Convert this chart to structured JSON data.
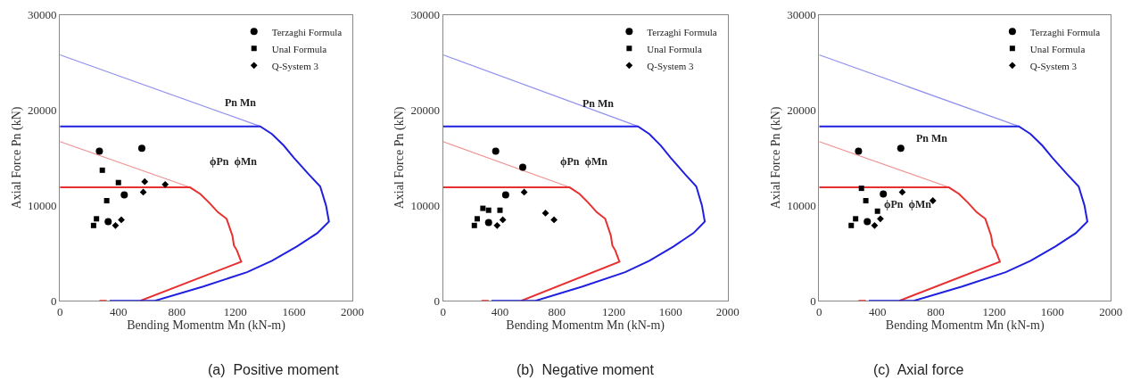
{
  "chart_data": [
    {
      "type": "scatter",
      "title": "(a)  Positive moment",
      "xlabel": "Bending Momentm Mn (kN-m)",
      "ylabel": "Axial Force Pn (kN)",
      "xlim": [
        0,
        2000
      ],
      "ylim": [
        0,
        30000
      ],
      "xticks": [
        0,
        400,
        800,
        1200,
        1600,
        2000
      ],
      "yticks": [
        0,
        10000,
        20000,
        30000
      ],
      "grid": false,
      "legend": "top right",
      "annotations": [
        "Pn Mn",
        "ϕPn  ϕMn"
      ],
      "series": [
        {
          "type": "line",
          "color": "#9090f0",
          "x": [
            0,
            1370
          ],
          "values": [
            25800,
            18300
          ]
        },
        {
          "type": "line",
          "color": "#f09090",
          "x": [
            0,
            890
          ],
          "values": [
            16700,
            11900
          ]
        },
        {
          "type": "line",
          "color": "#e83030",
          "x": [
            0,
            890,
            960,
            1020,
            1080,
            1140,
            1180,
            1190,
            1210,
            1240,
            550,
            null,
            320,
            270
          ],
          "values": [
            11900,
            11900,
            11200,
            10300,
            9300,
            8600,
            6800,
            5800,
            5300,
            4100,
            0,
            null,
            0,
            0
          ]
        },
        {
          "type": "line",
          "color": "#2020e0",
          "x": [
            0,
            1370,
            1450,
            1530,
            1600,
            1700,
            1780,
            1820,
            1840,
            1760,
            1620,
            1450,
            1280,
            980,
            650,
            340
          ],
          "values": [
            18300,
            18300,
            17500,
            16300,
            15000,
            13300,
            12000,
            10000,
            8300,
            7100,
            5700,
            4200,
            3000,
            1500,
            0,
            0
          ]
        },
        {
          "name": "Terzaghi Formula",
          "marker": "circle",
          "color": "#000000",
          "x": [
            270,
            560,
            440,
            330
          ],
          "values": [
            15700,
            16000,
            11100,
            8300
          ]
        },
        {
          "name": "Unal Formula",
          "marker": "square",
          "color": "#000000",
          "x": [
            290,
            400,
            320,
            250,
            230
          ],
          "values": [
            13700,
            12400,
            10500,
            8600,
            7900
          ]
        },
        {
          "name": "Q-System 3",
          "marker": "diamond",
          "color": "#000000",
          "x": [
            580,
            720,
            570,
            420,
            380
          ],
          "values": [
            12500,
            12200,
            11400,
            8500,
            7900
          ]
        }
      ]
    },
    {
      "type": "scatter",
      "title": "(b)  Negative moment",
      "xlabel": "Bending Momentm Mn (kN-m)",
      "ylabel": "Axial Force Pn (kN)",
      "xlim": [
        0,
        2000
      ],
      "ylim": [
        0,
        30000
      ],
      "xticks": [
        0,
        400,
        800,
        1200,
        1600,
        2000
      ],
      "yticks": [
        0,
        10000,
        20000,
        30000
      ],
      "grid": false,
      "legend": "top right",
      "annotations": [
        "Pn Mn",
        "ϕPn  ϕMn"
      ],
      "series": [
        {
          "type": "line",
          "color": "#9090f0",
          "x": [
            0,
            1370
          ],
          "values": [
            25800,
            18300
          ]
        },
        {
          "type": "line",
          "color": "#f09090",
          "x": [
            0,
            890
          ],
          "values": [
            16700,
            11900
          ]
        },
        {
          "type": "line",
          "color": "#e83030",
          "x": [
            0,
            890,
            960,
            1020,
            1080,
            1140,
            1180,
            1190,
            1210,
            1240,
            550,
            null,
            320,
            270
          ],
          "values": [
            11900,
            11900,
            11200,
            10300,
            9300,
            8600,
            6800,
            5800,
            5300,
            4100,
            0,
            null,
            0,
            0
          ]
        },
        {
          "type": "line",
          "color": "#2020e0",
          "x": [
            0,
            1370,
            1450,
            1530,
            1600,
            1700,
            1780,
            1820,
            1840,
            1760,
            1620,
            1450,
            1280,
            980,
            650,
            340
          ],
          "values": [
            18300,
            18300,
            17500,
            16300,
            15000,
            13300,
            12000,
            10000,
            8300,
            7100,
            5700,
            4200,
            3000,
            1500,
            0,
            0
          ]
        },
        {
          "name": "Terzaghi Formula",
          "marker": "circle",
          "color": "#000000",
          "x": [
            370,
            560,
            440,
            320
          ],
          "values": [
            15700,
            14000,
            11100,
            8200
          ]
        },
        {
          "name": "Unal Formula",
          "marker": "square",
          "color": "#000000",
          "x": [
            280,
            320,
            400,
            240,
            220
          ],
          "values": [
            9700,
            9500,
            9500,
            8600,
            7900
          ]
        },
        {
          "name": "Q-System 3",
          "marker": "diamond",
          "color": "#000000",
          "x": [
            570,
            720,
            780,
            420,
            380
          ],
          "values": [
            11400,
            9200,
            8500,
            8500,
            7900
          ]
        }
      ]
    },
    {
      "type": "scatter",
      "title": "(c)  Axial force",
      "xlabel": "Bending Momentm Mn (kN-m)",
      "ylabel": "Axial Force Pn (kN)",
      "xlim": [
        0,
        2000
      ],
      "ylim": [
        0,
        30000
      ],
      "xticks": [
        0,
        400,
        800,
        1200,
        1600,
        2000
      ],
      "yticks": [
        0,
        10000,
        20000,
        30000
      ],
      "grid": false,
      "legend": "top right",
      "annotations": [
        "Pn Mn",
        "ϕPn  ϕMn"
      ],
      "series": [
        {
          "type": "line",
          "color": "#9090f0",
          "x": [
            0,
            1370
          ],
          "values": [
            25800,
            18300
          ]
        },
        {
          "type": "line",
          "color": "#f09090",
          "x": [
            0,
            890
          ],
          "values": [
            16700,
            11900
          ]
        },
        {
          "type": "line",
          "color": "#e83030",
          "x": [
            0,
            890,
            960,
            1020,
            1080,
            1140,
            1180,
            1190,
            1210,
            1240,
            550,
            null,
            320,
            270
          ],
          "values": [
            11900,
            11900,
            11200,
            10300,
            9300,
            8600,
            6800,
            5800,
            5300,
            4100,
            0,
            null,
            0,
            0
          ]
        },
        {
          "type": "line",
          "color": "#2020e0",
          "x": [
            0,
            1370,
            1450,
            1530,
            1600,
            1700,
            1780,
            1820,
            1840,
            1760,
            1620,
            1450,
            1280,
            980,
            650,
            340
          ],
          "values": [
            18300,
            18300,
            17500,
            16300,
            15000,
            13300,
            12000,
            10000,
            8300,
            7100,
            5700,
            4200,
            3000,
            1500,
            0,
            0
          ]
        },
        {
          "name": "Terzaghi Formula",
          "marker": "circle",
          "color": "#000000",
          "x": [
            270,
            560,
            440,
            330
          ],
          "values": [
            15700,
            16000,
            11200,
            8300
          ]
        },
        {
          "name": "Unal Formula",
          "marker": "square",
          "color": "#000000",
          "x": [
            290,
            320,
            400,
            250,
            220
          ],
          "values": [
            11800,
            10500,
            9400,
            8600,
            7900
          ]
        },
        {
          "name": "Q-System 3",
          "marker": "diamond",
          "color": "#000000",
          "x": [
            570,
            420,
            380,
            780
          ],
          "values": [
            11400,
            8600,
            7900,
            10500
          ]
        }
      ]
    }
  ]
}
